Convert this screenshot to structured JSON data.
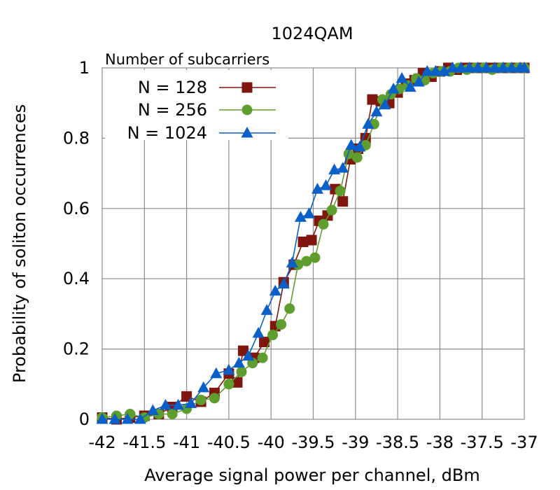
{
  "chart_data": {
    "type": "line",
    "title": "1024QAM",
    "xlabel": "Average signal power per channel, dBm",
    "ylabel": "Probability of soliton occurrences",
    "xlim": [
      -42,
      -37
    ],
    "ylim": [
      0,
      1
    ],
    "x_ticks": [
      -42,
      -41.5,
      -41,
      -40.5,
      -40,
      -39.5,
      -39,
      -38.5,
      -38,
      -37.5,
      -37
    ],
    "x_tick_labels": [
      "-42",
      "-41.5",
      "-41",
      "-40.5",
      "-40",
      "-39.5",
      "-39",
      "-38.5",
      "-38",
      "-37.5",
      "-37"
    ],
    "y_ticks": [
      0,
      0.2,
      0.4,
      0.6,
      0.8,
      1
    ],
    "y_tick_labels": [
      "0",
      "0.2",
      "0.4",
      "0.6",
      "0.8",
      "1"
    ],
    "grid": true,
    "legend": {
      "title": "Number of subcarriers",
      "placement": "top-left"
    },
    "series": [
      {
        "name": "N = 128",
        "color": "#7f170e",
        "marker": "square",
        "points": [
          [
            -42.0,
            0.005
          ],
          [
            -41.83,
            0.0
          ],
          [
            -41.67,
            0.005
          ],
          [
            -41.5,
            0.01
          ],
          [
            -41.33,
            0.015
          ],
          [
            -41.17,
            0.035
          ],
          [
            -41.0,
            0.065
          ],
          [
            -40.83,
            0.05
          ],
          [
            -40.67,
            0.075
          ],
          [
            -40.5,
            0.13
          ],
          [
            -40.4,
            0.105
          ],
          [
            -40.33,
            0.195
          ],
          [
            -40.2,
            0.175
          ],
          [
            -40.08,
            0.22
          ],
          [
            -39.95,
            0.265
          ],
          [
            -39.85,
            0.39
          ],
          [
            -39.73,
            0.44
          ],
          [
            -39.62,
            0.505
          ],
          [
            -39.52,
            0.51
          ],
          [
            -39.43,
            0.565
          ],
          [
            -39.33,
            0.58
          ],
          [
            -39.24,
            0.655
          ],
          [
            -39.15,
            0.62
          ],
          [
            -39.06,
            0.74
          ],
          [
            -38.97,
            0.77
          ],
          [
            -38.88,
            0.8
          ],
          [
            -38.8,
            0.91
          ],
          [
            -38.7,
            0.905
          ],
          [
            -38.6,
            0.9
          ],
          [
            -38.5,
            0.93
          ],
          [
            -38.4,
            0.955
          ],
          [
            -38.3,
            0.965
          ],
          [
            -38.2,
            0.985
          ],
          [
            -38.1,
            0.975
          ],
          [
            -38.0,
            0.99
          ],
          [
            -37.9,
            1.0
          ],
          [
            -37.8,
            0.995
          ],
          [
            -37.7,
            1.0
          ],
          [
            -37.6,
            1.0
          ],
          [
            -37.5,
            1.0
          ],
          [
            -37.4,
            1.0
          ],
          [
            -37.3,
            1.0
          ],
          [
            -37.2,
            1.0
          ],
          [
            -37.1,
            1.0
          ],
          [
            -37.0,
            1.0
          ]
        ]
      },
      {
        "name": "N = 256",
        "color": "#5e9e2e",
        "marker": "circle",
        "points": [
          [
            -42.0,
            0.005
          ],
          [
            -41.83,
            0.01
          ],
          [
            -41.67,
            0.015
          ],
          [
            -41.5,
            0.005
          ],
          [
            -41.33,
            0.015
          ],
          [
            -41.17,
            0.015
          ],
          [
            -41.0,
            0.03
          ],
          [
            -40.83,
            0.055
          ],
          [
            -40.67,
            0.06
          ],
          [
            -40.5,
            0.1
          ],
          [
            -40.35,
            0.135
          ],
          [
            -40.22,
            0.16
          ],
          [
            -40.1,
            0.175
          ],
          [
            -39.98,
            0.24
          ],
          [
            -39.88,
            0.27
          ],
          [
            -39.78,
            0.315
          ],
          [
            -39.68,
            0.44
          ],
          [
            -39.58,
            0.45
          ],
          [
            -39.48,
            0.46
          ],
          [
            -39.38,
            0.555
          ],
          [
            -39.28,
            0.595
          ],
          [
            -39.18,
            0.65
          ],
          [
            -39.08,
            0.755
          ],
          [
            -38.98,
            0.745
          ],
          [
            -38.88,
            0.78
          ],
          [
            -38.78,
            0.84
          ],
          [
            -38.68,
            0.91
          ],
          [
            -38.58,
            0.925
          ],
          [
            -38.48,
            0.94
          ],
          [
            -38.38,
            0.95
          ],
          [
            -38.28,
            0.97
          ],
          [
            -38.18,
            0.965
          ],
          [
            -38.08,
            0.985
          ],
          [
            -37.98,
            0.99
          ],
          [
            -37.88,
            0.99
          ],
          [
            -37.78,
            1.0
          ],
          [
            -37.68,
            0.995
          ],
          [
            -37.58,
            1.0
          ],
          [
            -37.48,
            1.0
          ],
          [
            -37.38,
            0.995
          ],
          [
            -37.28,
            1.0
          ],
          [
            -37.18,
            1.0
          ],
          [
            -37.08,
            1.0
          ],
          [
            -37.0,
            1.0
          ]
        ]
      },
      {
        "name": "N = 1024",
        "color": "#0a5fc8",
        "marker": "triangle",
        "points": [
          [
            -42.0,
            0.0
          ],
          [
            -41.85,
            0.0
          ],
          [
            -41.7,
            0.0
          ],
          [
            -41.55,
            0.0
          ],
          [
            -41.4,
            0.025
          ],
          [
            -41.25,
            0.04
          ],
          [
            -41.1,
            0.04
          ],
          [
            -40.95,
            0.045
          ],
          [
            -40.8,
            0.09
          ],
          [
            -40.65,
            0.13
          ],
          [
            -40.5,
            0.14
          ],
          [
            -40.38,
            0.16
          ],
          [
            -40.27,
            0.18
          ],
          [
            -40.15,
            0.245
          ],
          [
            -40.05,
            0.31
          ],
          [
            -39.95,
            0.365
          ],
          [
            -39.85,
            0.385
          ],
          [
            -39.75,
            0.445
          ],
          [
            -39.65,
            0.575
          ],
          [
            -39.55,
            0.585
          ],
          [
            -39.45,
            0.655
          ],
          [
            -39.35,
            0.665
          ],
          [
            -39.25,
            0.71
          ],
          [
            -39.15,
            0.715
          ],
          [
            -39.05,
            0.78
          ],
          [
            -38.95,
            0.775
          ],
          [
            -38.85,
            0.84
          ],
          [
            -38.75,
            0.875
          ],
          [
            -38.65,
            0.895
          ],
          [
            -38.55,
            0.94
          ],
          [
            -38.45,
            0.97
          ],
          [
            -38.35,
            0.945
          ],
          [
            -38.25,
            0.96
          ],
          [
            -38.15,
            0.99
          ],
          [
            -38.05,
            0.99
          ],
          [
            -37.95,
            0.99
          ],
          [
            -37.85,
            1.0
          ],
          [
            -37.75,
            1.0
          ],
          [
            -37.65,
            1.0
          ],
          [
            -37.55,
            1.0
          ],
          [
            -37.45,
            1.0
          ],
          [
            -37.35,
            1.0
          ],
          [
            -37.25,
            1.0
          ],
          [
            -37.15,
            1.0
          ],
          [
            -37.05,
            1.0
          ],
          [
            -37.0,
            1.0
          ]
        ]
      }
    ]
  }
}
